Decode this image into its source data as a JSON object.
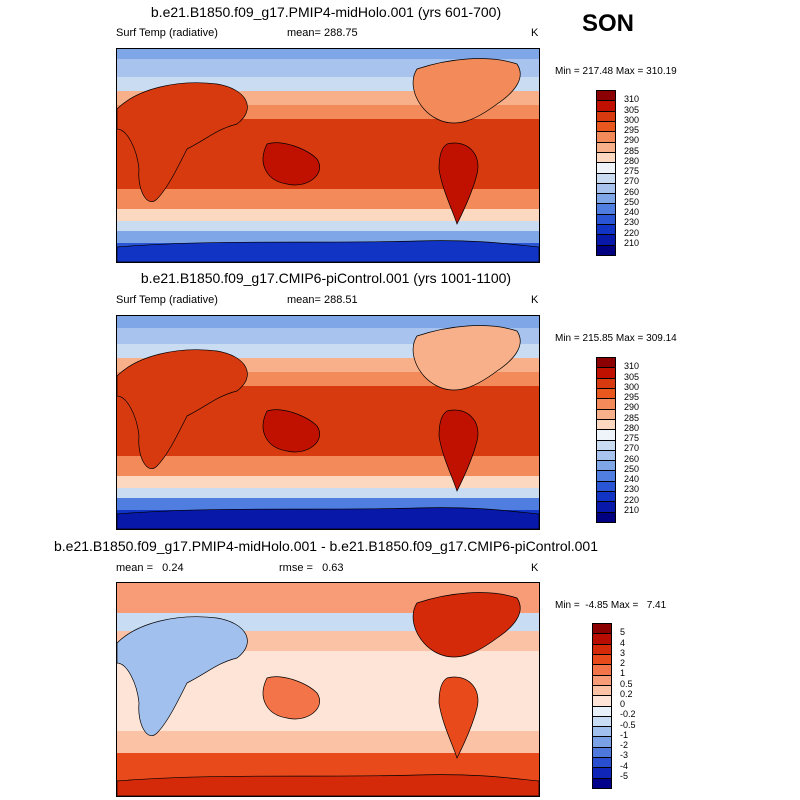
{
  "season": "SON",
  "panels": [
    {
      "title": "b.e21.B1850.f09_g17.PMIP4-midHolo.001 (yrs 601-700)",
      "left_label": "Surf Temp (radiative)",
      "center_label": "mean= 288.75",
      "units": "K",
      "minmax": "Min = 217.48 Max = 310.19",
      "ticks": [
        "310",
        "305",
        "300",
        "295",
        "290",
        "285",
        "280",
        "275",
        "270",
        "260",
        "250",
        "240",
        "230",
        "220",
        "210"
      ],
      "colors": [
        "#8b0000",
        "#c01000",
        "#d83a10",
        "#e8581e",
        "#f28a5a",
        "#f7b08a",
        "#fcd8c0",
        "#eef4fa",
        "#c9dcf2",
        "#a8c4ee",
        "#7fa7e8",
        "#4f7ee0",
        "#2a56d6",
        "#1234c4",
        "#0818a8",
        "#000080"
      ]
    },
    {
      "title": "b.e21.B1850.f09_g17.CMIP6-piControl.001 (yrs 1001-1100)",
      "left_label": "Surf Temp (radiative)",
      "center_label": "mean= 288.51",
      "units": "K",
      "minmax": "Min = 215.85 Max = 309.14",
      "ticks": [
        "310",
        "305",
        "300",
        "295",
        "290",
        "285",
        "280",
        "275",
        "270",
        "260",
        "250",
        "240",
        "230",
        "220",
        "210"
      ],
      "colors": [
        "#8b0000",
        "#c01000",
        "#d83a10",
        "#e8581e",
        "#f28a5a",
        "#f7b08a",
        "#fcd8c0",
        "#eef4fa",
        "#c9dcf2",
        "#a8c4ee",
        "#7fa7e8",
        "#4f7ee0",
        "#2a56d6",
        "#1234c4",
        "#0818a8",
        "#000080"
      ]
    },
    {
      "title": "b.e21.B1850.f09_g17.PMIP4-midHolo.001 - b.e21.B1850.f09_g17.CMIP6-piControl.001",
      "left_label": "mean =   0.24",
      "center_label": "rmse =   0.63",
      "units": "K",
      "minmax": "Min =  -4.85 Max =   7.41",
      "ticks": [
        "5",
        "4",
        "3",
        "2",
        "1",
        "0.5",
        "0.2",
        "0",
        "-0.2",
        "-0.5",
        "-1",
        "-2",
        "-3",
        "-4",
        "-5"
      ],
      "colors": [
        "#8b0000",
        "#b80c00",
        "#d42a0a",
        "#e84a1c",
        "#f27448",
        "#f79c76",
        "#fbc2a6",
        "#fde4d6",
        "#e8f0fa",
        "#c8dcf4",
        "#a2c0ee",
        "#7aa0e6",
        "#4e78dc",
        "#2a4ed0",
        "#1026b8",
        "#00008a"
      ]
    }
  ]
}
